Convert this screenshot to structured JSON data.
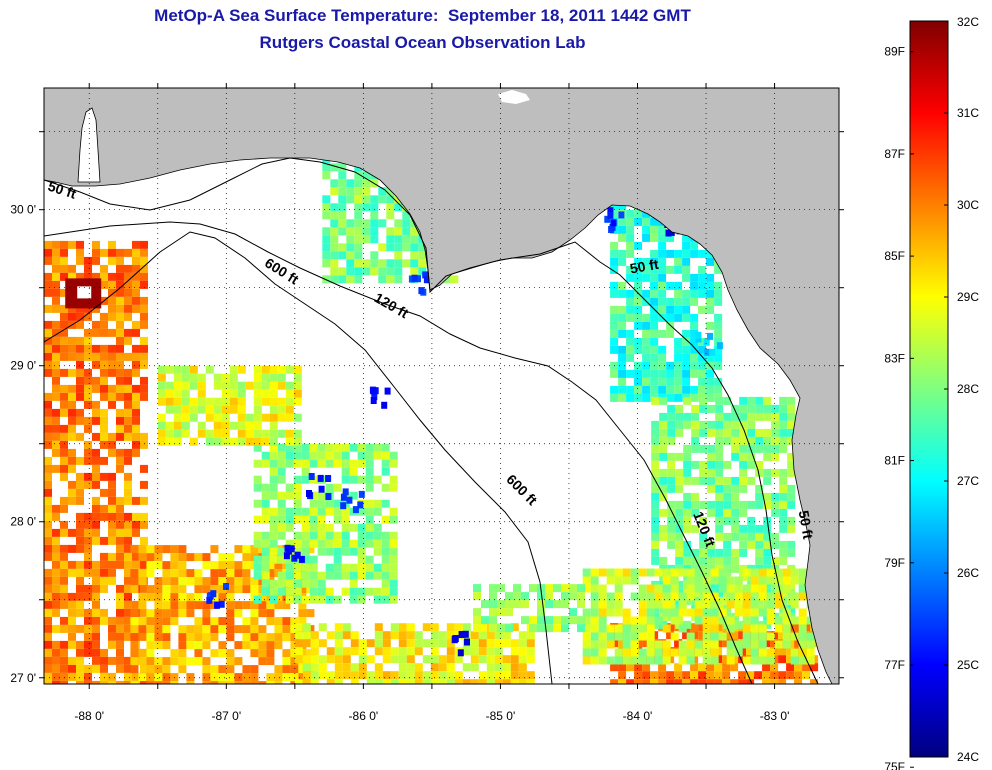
{
  "title": {
    "line1": "MetOp-A Sea Surface Temperature:  September 18, 2011 1442 GMT",
    "line2": "Rutgers Coastal Ocean Observation Lab"
  },
  "map": {
    "lon_range": [
      -88.33,
      -82.53
    ],
    "lat_range": [
      26.96,
      30.78
    ],
    "lon_ticks": [
      -88,
      -87,
      -86,
      -85,
      -84,
      -83
    ],
    "lon_labels": [
      "-88 0'",
      "-87 0'",
      "-86 0'",
      "-85 0'",
      "-84 0'",
      "-83 0'"
    ],
    "lat_ticks": [
      27,
      28,
      29,
      30
    ],
    "lat_labels": [
      "27 0'",
      "28 0'",
      "29 0'",
      "30 0'"
    ],
    "grid": "dotted",
    "land_color": "#bebebe",
    "contours": [
      {
        "label": "50 ft",
        "instances": [
          {
            "lon": -88.2,
            "lat": 30.12,
            "angle": 18
          },
          {
            "lon": -83.95,
            "lat": 29.63,
            "angle": -10
          },
          {
            "lon": -82.78,
            "lat": 27.98,
            "angle": 80
          }
        ]
      },
      {
        "label": "120 ft",
        "instances": [
          {
            "lon": -85.8,
            "lat": 29.38,
            "angle": 30
          },
          {
            "lon": -83.52,
            "lat": 27.95,
            "angle": 68
          }
        ]
      },
      {
        "label": "600 ft",
        "instances": [
          {
            "lon": -86.6,
            "lat": 29.6,
            "angle": 32
          },
          {
            "lon": -84.85,
            "lat": 28.2,
            "angle": 45
          }
        ]
      }
    ],
    "sst_patches": [
      {
        "name": "western-warm-band",
        "c": 30.0,
        "lon": [
          -88.33,
          -87.6
        ],
        "lat": [
          26.96,
          29.8
        ]
      },
      {
        "name": "southwest-warm",
        "c": 29.6,
        "lon": [
          -87.7,
          -86.4
        ],
        "lat": [
          26.96,
          27.85
        ]
      },
      {
        "name": "south-central-warm",
        "c": 29.0,
        "lon": [
          -86.5,
          -84.8
        ],
        "lat": [
          26.96,
          27.35
        ]
      },
      {
        "name": "southeast-hot",
        "c": 30.0,
        "lon": [
          -84.2,
          -82.7
        ],
        "lat": [
          26.96,
          27.35
        ]
      },
      {
        "name": "panhandle-east",
        "c": 28.0,
        "lon": [
          -86.3,
          -85.35
        ],
        "lat": [
          29.55,
          30.4
        ]
      },
      {
        "name": "big-bend-coast",
        "c": 27.4,
        "lon": [
          -84.2,
          -83.4
        ],
        "lat": [
          28.8,
          30.05
        ]
      },
      {
        "name": "west-florida-shelf",
        "c": 28.0,
        "lon": [
          -83.9,
          -82.9
        ],
        "lat": [
          27.35,
          28.8
        ]
      },
      {
        "name": "southeast-shelf",
        "c": 28.6,
        "lon": [
          -84.4,
          -82.75
        ],
        "lat": [
          27.1,
          27.7
        ]
      },
      {
        "name": "central-scatter",
        "c": 28.2,
        "lon": [
          -86.8,
          -85.8
        ],
        "lat": [
          27.5,
          28.5
        ]
      },
      {
        "name": "mid-scatter",
        "c": 28.8,
        "lon": [
          -87.5,
          -86.5
        ],
        "lat": [
          28.5,
          29.0
        ]
      },
      {
        "name": "southern-green",
        "c": 28.3,
        "lon": [
          -85.2,
          -84.4
        ],
        "lat": [
          27.3,
          27.6
        ]
      }
    ],
    "cold_spots": [
      {
        "lon": -83.75,
        "lat": 29.93,
        "c": 24.4
      },
      {
        "lon": -84.2,
        "lat": 29.95,
        "c": 25.0
      },
      {
        "lon": -86.35,
        "lat": 28.25,
        "c": 24.8
      },
      {
        "lon": -86.1,
        "lat": 28.15,
        "c": 25.0
      },
      {
        "lon": -86.5,
        "lat": 27.85,
        "c": 24.6
      },
      {
        "lon": -85.9,
        "lat": 28.8,
        "c": 24.8
      },
      {
        "lon": -87.1,
        "lat": 27.55,
        "c": 25.0
      },
      {
        "lon": -85.3,
        "lat": 27.25,
        "c": 24.6
      },
      {
        "lon": -85.6,
        "lat": 29.55,
        "c": 25.2
      },
      {
        "lon": -83.5,
        "lat": 29.15,
        "c": 26.3
      }
    ],
    "hot_spot": {
      "lon": -88.0,
      "lat": 29.47,
      "c": 31.8
    }
  },
  "colorbar": {
    "celsius_labels": [
      "32C",
      "31C",
      "30C",
      "29C",
      "28C",
      "27C",
      "26C",
      "25C",
      "24C"
    ],
    "celsius_values": [
      32,
      31,
      30,
      29,
      28,
      27,
      26,
      25,
      24
    ],
    "fahrenheit_labels": [
      "89F",
      "87F",
      "85F",
      "83F",
      "81F",
      "79F",
      "77F",
      "75F"
    ],
    "fahrenheit_values": [
      89,
      87,
      85,
      83,
      81,
      79,
      77,
      75
    ],
    "range_c": [
      24,
      32
    ]
  }
}
